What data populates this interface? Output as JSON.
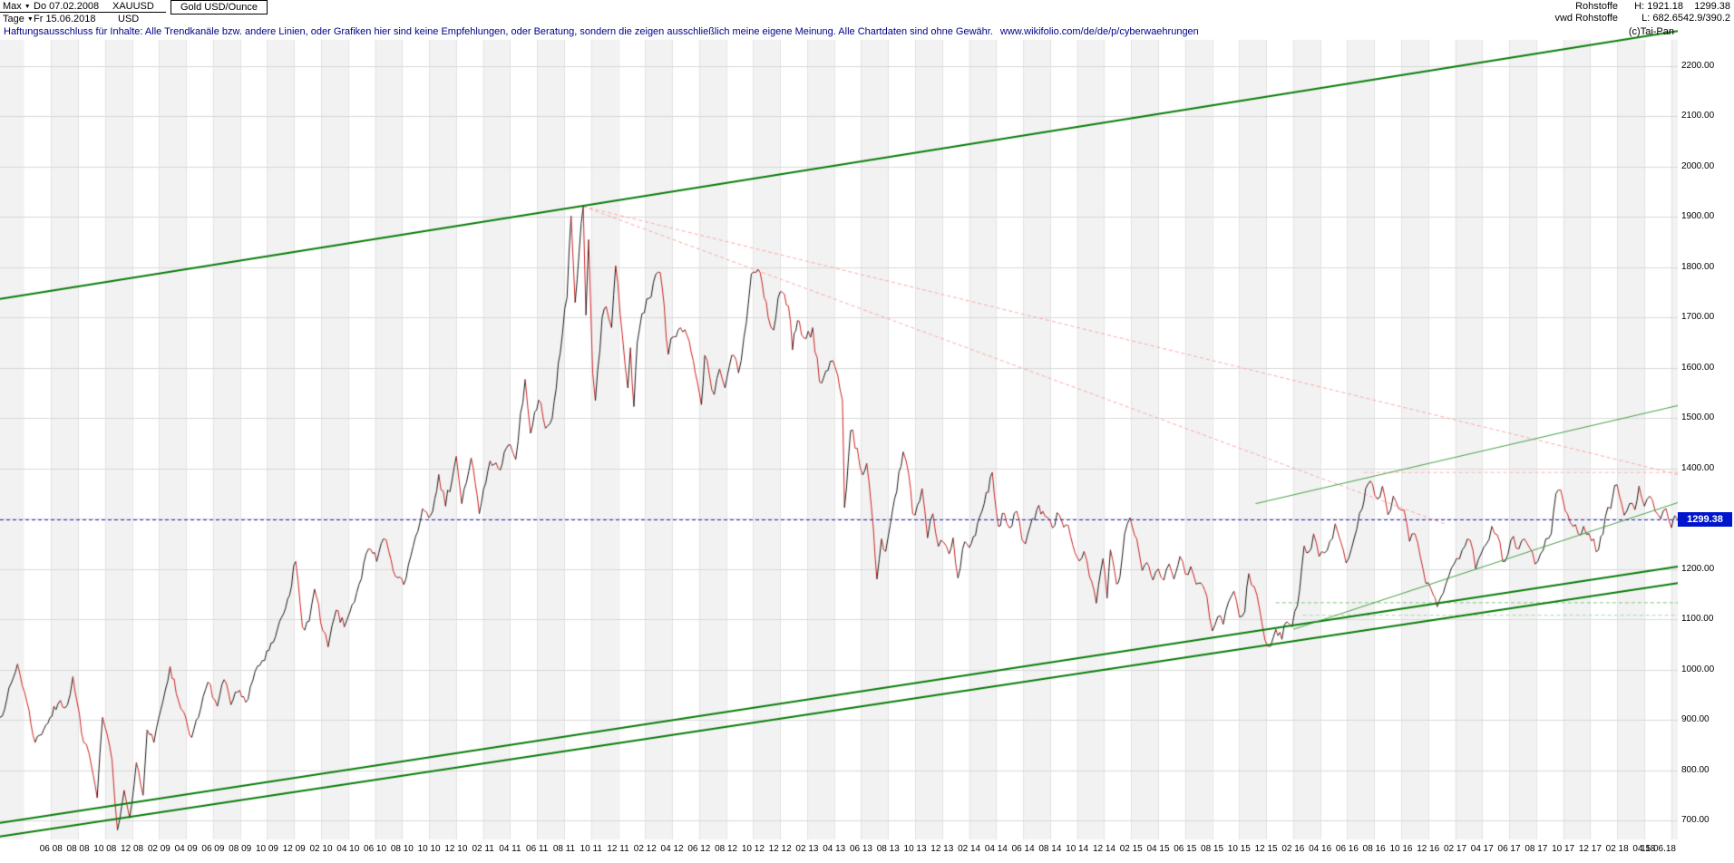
{
  "header": {
    "range": "Max",
    "dropdown_arrow": "▼",
    "start_date": "Do 07.02.2008",
    "symbol": "XAUUSD",
    "instrument": "Gold USD/Ounce",
    "period": "Tage",
    "end_date": "Fr 15.06.2018",
    "currency": "USD",
    "category": "Rohstoffe",
    "high_label": "H: 1921.18",
    "last_value": "1299.38",
    "source": "vwd Rohstoffe",
    "low_label": "L: 682.65",
    "change_value": "42.9/390.2",
    "copyright": "(c)Tai-Pan"
  },
  "disclaimer": {
    "text": "Haftungsausschluss für Inhalte: Alle Trendkanäle bzw. andere Linien, oder Grafiken hier sind keine Empfehlungen, oder Beratung, sondern die zeigen ausschließlich meine eigene Meinung. Alle Chartdaten sind ohne Gewähr.",
    "url": "www.wikifolio.com/de/de/p/cyberwaehrungen"
  },
  "price_axis": {
    "labels": [
      "2200.00",
      "2100.00",
      "2000.00",
      "1900.00",
      "1800.00",
      "1700.00",
      "1600.00",
      "1500.00",
      "1400.00",
      "1300.00",
      "1200.00",
      "1100.00",
      "1000.00",
      "900.00",
      "800.00",
      "700.00"
    ],
    "last_price_tag": "1299.38"
  },
  "time_axis": {
    "start_month_offset": 3.78,
    "label_step_months": 2,
    "labels": [
      "06 08",
      "08 08",
      "10 08",
      "12 08",
      "02 09",
      "04 09",
      "06 09",
      "08 09",
      "10 09",
      "12 09",
      "02 10",
      "04 10",
      "06 10",
      "08 10",
      "10 10",
      "12 10",
      "02 11",
      "04 11",
      "06 11",
      "08 11",
      "10 11",
      "12 11",
      "02 12",
      "04 12",
      "06 12",
      "08 12",
      "10 12",
      "12 12",
      "02 13",
      "04 13",
      "06 13",
      "08 13",
      "10 13",
      "12 13",
      "02 14",
      "04 14",
      "06 14",
      "08 14",
      "10 14",
      "12 14",
      "02 15",
      "04 15",
      "06 15",
      "08 15",
      "10 15",
      "12 15",
      "02 16",
      "04 16",
      "06 16",
      "08 16",
      "10 16",
      "12 16",
      "02 17",
      "04 17",
      "06 17",
      "08 17",
      "10 17",
      "12 17",
      "02 18",
      "04 18"
    ],
    "end_label": "15.06.18"
  },
  "chart_data": {
    "type": "line",
    "title": "Gold USD/Ounce (XAUUSD), Tage, 07.02.2008 - 15.06.2018",
    "x_unit": "months since 07.02.2008",
    "x_range": [
      0,
      124.27
    ],
    "ylim": [
      700,
      2200
    ],
    "y_gridline_step": 100,
    "high": 1921.18,
    "low": 682.65,
    "last": 1299.38,
    "price_path": [
      [
        0,
        905
      ],
      [
        0.5,
        940
      ],
      [
        1.3,
        1011
      ],
      [
        2,
        935
      ],
      [
        2.6,
        855
      ],
      [
        3.4,
        890
      ],
      [
        4.3,
        932
      ],
      [
        5,
        930
      ],
      [
        5.4,
        986
      ],
      [
        6.2,
        855
      ],
      [
        6.6,
        833
      ],
      [
        7.2,
        745
      ],
      [
        7.6,
        905
      ],
      [
        8.3,
        820
      ],
      [
        8.7,
        681
      ],
      [
        9.2,
        760
      ],
      [
        9.6,
        705
      ],
      [
        10.1,
        815
      ],
      [
        10.6,
        750
      ],
      [
        10.9,
        880
      ],
      [
        11.4,
        855
      ],
      [
        11.9,
        919
      ],
      [
        12.6,
        1006
      ],
      [
        13.2,
        940
      ],
      [
        13.6,
        916
      ],
      [
        14.2,
        865
      ],
      [
        14.7,
        905
      ],
      [
        15.4,
        975
      ],
      [
        16.1,
        927
      ],
      [
        16.6,
        980
      ],
      [
        17.1,
        930
      ],
      [
        17.6,
        955
      ],
      [
        18.2,
        935
      ],
      [
        18.9,
        997
      ],
      [
        19.6,
        1018
      ],
      [
        20.4,
        1065
      ],
      [
        21.3,
        1140
      ],
      [
        21.9,
        1215
      ],
      [
        22.4,
        1085
      ],
      [
        22.9,
        1096
      ],
      [
        23.3,
        1160
      ],
      [
        23.9,
        1078
      ],
      [
        24.3,
        1045
      ],
      [
        24.9,
        1118
      ],
      [
        25.5,
        1085
      ],
      [
        25.9,
        1113
      ],
      [
        26.6,
        1170
      ],
      [
        27.3,
        1240
      ],
      [
        27.9,
        1215
      ],
      [
        28.4,
        1260
      ],
      [
        28.8,
        1235
      ],
      [
        29.3,
        1185
      ],
      [
        29.9,
        1169
      ],
      [
        30.6,
        1245
      ],
      [
        31.3,
        1320
      ],
      [
        31.9,
        1307
      ],
      [
        32.5,
        1388
      ],
      [
        33,
        1325
      ],
      [
        33.8,
        1424
      ],
      [
        34.2,
        1330
      ],
      [
        34.9,
        1421
      ],
      [
        35.5,
        1310
      ],
      [
        36.3,
        1415
      ],
      [
        36.9,
        1400
      ],
      [
        37.8,
        1447
      ],
      [
        38.2,
        1418
      ],
      [
        38.9,
        1577
      ],
      [
        39.3,
        1470
      ],
      [
        39.9,
        1536
      ],
      [
        40.4,
        1480
      ],
      [
        40.9,
        1500
      ],
      [
        41.5,
        1630
      ],
      [
        42,
        1740
      ],
      [
        42.3,
        1902
      ],
      [
        42.6,
        1730
      ],
      [
        43.2,
        1921
      ],
      [
        43.4,
        1705
      ],
      [
        43.6,
        1855
      ],
      [
        43.9,
        1590
      ],
      [
        44.1,
        1535
      ],
      [
        44.6,
        1700
      ],
      [
        44.9,
        1722
      ],
      [
        45.3,
        1680
      ],
      [
        45.6,
        1803
      ],
      [
        46.1,
        1665
      ],
      [
        46.5,
        1560
      ],
      [
        46.7,
        1640
      ],
      [
        46.95,
        1523
      ],
      [
        47.2,
        1650
      ],
      [
        47.9,
        1737
      ],
      [
        48.9,
        1790
      ],
      [
        49.5,
        1627
      ],
      [
        49.9,
        1662
      ],
      [
        50.4,
        1680
      ],
      [
        50.9,
        1664
      ],
      [
        51.5,
        1590
      ],
      [
        51.95,
        1527
      ],
      [
        52.2,
        1625
      ],
      [
        52.9,
        1547
      ],
      [
        53.3,
        1598
      ],
      [
        53.7,
        1560
      ],
      [
        54.2,
        1625
      ],
      [
        54.7,
        1590
      ],
      [
        55.1,
        1660
      ],
      [
        55.65,
        1787
      ],
      [
        56.15,
        1796
      ],
      [
        56.9,
        1700
      ],
      [
        57.3,
        1675
      ],
      [
        57.8,
        1752
      ],
      [
        58.4,
        1723
      ],
      [
        58.7,
        1636
      ],
      [
        58.95,
        1674
      ],
      [
        59.2,
        1693
      ],
      [
        59.7,
        1658
      ],
      [
        60.2,
        1680
      ],
      [
        60.7,
        1572
      ],
      [
        61,
        1580
      ],
      [
        61.5,
        1613
      ],
      [
        61.9,
        1598
      ],
      [
        62.2,
        1560
      ],
      [
        62.4,
        1535
      ],
      [
        62.5,
        1400
      ],
      [
        62.55,
        1322
      ],
      [
        63,
        1475
      ],
      [
        63.5,
        1440
      ],
      [
        63.9,
        1387
      ],
      [
        64.2,
        1410
      ],
      [
        64.7,
        1277
      ],
      [
        64.95,
        1180
      ],
      [
        65.3,
        1260
      ],
      [
        65.6,
        1235
      ],
      [
        66.1,
        1315
      ],
      [
        66.9,
        1433
      ],
      [
        67.3,
        1390
      ],
      [
        67.6,
        1310
      ],
      [
        67.95,
        1327
      ],
      [
        68.3,
        1360
      ],
      [
        68.7,
        1262
      ],
      [
        69.1,
        1310
      ],
      [
        69.5,
        1245
      ],
      [
        69.9,
        1253
      ],
      [
        70.3,
        1230
      ],
      [
        70.6,
        1262
      ],
      [
        70.95,
        1182
      ],
      [
        71.3,
        1240
      ],
      [
        71.95,
        1251
      ],
      [
        72.4,
        1290
      ],
      [
        72.9,
        1330
      ],
      [
        73.5,
        1392
      ],
      [
        73.95,
        1285
      ],
      [
        74.4,
        1310
      ],
      [
        74.95,
        1285
      ],
      [
        75.3,
        1315
      ],
      [
        75.7,
        1258
      ],
      [
        75.95,
        1250
      ],
      [
        76.3,
        1285
      ],
      [
        76.95,
        1327
      ],
      [
        77.4,
        1305
      ],
      [
        77.95,
        1282
      ],
      [
        78.3,
        1312
      ],
      [
        78.95,
        1288
      ],
      [
        79.3,
        1265
      ],
      [
        79.95,
        1216
      ],
      [
        80.3,
        1235
      ],
      [
        80.7,
        1185
      ],
      [
        81.2,
        1132
      ],
      [
        81.7,
        1221
      ],
      [
        82,
        1142
      ],
      [
        82.25,
        1238
      ],
      [
        82.7,
        1170
      ],
      [
        82.95,
        1184
      ],
      [
        83.3,
        1270
      ],
      [
        83.7,
        1302
      ],
      [
        84.2,
        1260
      ],
      [
        84.6,
        1197
      ],
      [
        84.95,
        1213
      ],
      [
        85.4,
        1178
      ],
      [
        85.8,
        1200
      ],
      [
        86.2,
        1178
      ],
      [
        86.6,
        1210
      ],
      [
        86.95,
        1180
      ],
      [
        87.4,
        1225
      ],
      [
        87.8,
        1190
      ],
      [
        88.2,
        1205
      ],
      [
        88.6,
        1170
      ],
      [
        88.95,
        1172
      ],
      [
        89.4,
        1145
      ],
      [
        89.8,
        1077
      ],
      [
        90.2,
        1105
      ],
      [
        90.6,
        1090
      ],
      [
        91,
        1135
      ],
      [
        91.4,
        1156
      ],
      [
        91.8,
        1105
      ],
      [
        92.2,
        1115
      ],
      [
        92.5,
        1191
      ],
      [
        92.9,
        1165
      ],
      [
        93.3,
        1120
      ],
      [
        93.7,
        1058
      ],
      [
        94.1,
        1046
      ],
      [
        94.5,
        1080
      ],
      [
        94.95,
        1060
      ],
      [
        95.3,
        1095
      ],
      [
        95.7,
        1085
      ],
      [
        96.1,
        1127
      ],
      [
        96.6,
        1246
      ],
      [
        96.95,
        1234
      ],
      [
        97.3,
        1270
      ],
      [
        97.7,
        1225
      ],
      [
        98.1,
        1232
      ],
      [
        98.5,
        1255
      ],
      [
        98.9,
        1290
      ],
      [
        99.3,
        1255
      ],
      [
        99.7,
        1212
      ],
      [
        100.1,
        1240
      ],
      [
        100.5,
        1280
      ],
      [
        100.9,
        1320
      ],
      [
        101.15,
        1360
      ],
      [
        101.5,
        1375
      ],
      [
        102,
        1340
      ],
      [
        102.4,
        1365
      ],
      [
        102.8,
        1308
      ],
      [
        103.2,
        1345
      ],
      [
        103.6,
        1320
      ],
      [
        104,
        1317
      ],
      [
        104.4,
        1255
      ],
      [
        104.8,
        1270
      ],
      [
        105.2,
        1225
      ],
      [
        105.6,
        1172
      ],
      [
        106,
        1160
      ],
      [
        106.45,
        1125
      ],
      [
        106.9,
        1152
      ],
      [
        107.3,
        1185
      ],
      [
        107.7,
        1210
      ],
      [
        108.1,
        1220
      ],
      [
        108.5,
        1245
      ],
      [
        108.9,
        1257
      ],
      [
        109.3,
        1200
      ],
      [
        109.7,
        1230
      ],
      [
        110.1,
        1250
      ],
      [
        110.5,
        1285
      ],
      [
        110.9,
        1268
      ],
      [
        111.3,
        1215
      ],
      [
        111.7,
        1230
      ],
      [
        112.1,
        1265
      ],
      [
        112.5,
        1240
      ],
      [
        112.9,
        1260
      ],
      [
        113.3,
        1242
      ],
      [
        113.7,
        1210
      ],
      [
        114.1,
        1230
      ],
      [
        114.5,
        1260
      ],
      [
        114.9,
        1270
      ],
      [
        115.25,
        1350
      ],
      [
        115.6,
        1357
      ],
      [
        116.1,
        1310
      ],
      [
        116.5,
        1285
      ],
      [
        116.9,
        1270
      ],
      [
        117.3,
        1285
      ],
      [
        117.7,
        1270
      ],
      [
        118.4,
        1238
      ],
      [
        118.9,
        1303
      ],
      [
        119.3,
        1320
      ],
      [
        119.6,
        1366
      ],
      [
        119.95,
        1345
      ],
      [
        120.3,
        1307
      ],
      [
        120.7,
        1330
      ],
      [
        121.1,
        1318
      ],
      [
        121.4,
        1365
      ],
      [
        121.8,
        1325
      ],
      [
        122.2,
        1345
      ],
      [
        122.6,
        1315
      ],
      [
        123,
        1300
      ],
      [
        123.4,
        1320
      ],
      [
        123.8,
        1282
      ],
      [
        124.05,
        1306
      ],
      [
        124.25,
        1299.38
      ]
    ],
    "annotations": [
      {
        "id": "channel-upper",
        "type": "line",
        "layer": "over",
        "style": "solid",
        "color": "#067b06",
        "width": 2,
        "from": [
          0,
          1737
        ],
        "to": [
          124.27,
          2270
        ]
      },
      {
        "id": "channel-lower-inner",
        "type": "line",
        "layer": "over",
        "style": "solid",
        "color": "#067b06",
        "width": 2,
        "from": [
          0,
          695
        ],
        "to": [
          124.27,
          1205
        ]
      },
      {
        "id": "channel-lower-outer",
        "type": "line",
        "layer": "over",
        "style": "solid",
        "color": "#067b06",
        "width": 2,
        "from": [
          0,
          668
        ],
        "to": [
          124.27,
          1172
        ]
      },
      {
        "id": "minor-rising-upper",
        "type": "line",
        "layer": "over",
        "style": "solid",
        "color": "#46a046",
        "width": 1,
        "from": [
          93,
          1330
        ],
        "to": [
          124.27,
          1525
        ]
      },
      {
        "id": "minor-rising-lower",
        "type": "line",
        "layer": "over",
        "style": "solid",
        "color": "#46a046",
        "width": 1,
        "from": [
          95.8,
          1080
        ],
        "to": [
          124.27,
          1332
        ]
      },
      {
        "id": "falling-from-peak-outer",
        "type": "line",
        "layer": "under",
        "style": "dashed",
        "color": "#ffa8a8",
        "width": 1,
        "from": [
          43.2,
          1921
        ],
        "to": [
          124.27,
          1388
        ]
      },
      {
        "id": "falling-from-peak-inner",
        "type": "line",
        "layer": "under",
        "style": "dashed",
        "color": "#ffa8a8",
        "width": 1,
        "from": [
          43.2,
          1921
        ],
        "to": [
          107,
          1290
        ]
      },
      {
        "id": "resistance-1390",
        "type": "line",
        "layer": "under",
        "style": "dashed",
        "color": "#ffb4b4",
        "width": 1,
        "from": [
          101,
          1392
        ],
        "to": [
          124.27,
          1392
        ]
      },
      {
        "id": "support-1133",
        "type": "line",
        "layer": "under",
        "style": "dashed",
        "color": "#7cc87c",
        "width": 1,
        "from": [
          94.5,
          1133
        ],
        "to": [
          124.27,
          1133
        ]
      },
      {
        "id": "support-1108",
        "type": "line",
        "layer": "under",
        "style": "dashed",
        "color": "#a8d8a8",
        "width": 1,
        "from": [
          96.5,
          1108
        ],
        "to": [
          124.27,
          1108
        ]
      },
      {
        "id": "last-price-line",
        "type": "hline",
        "layer": "over",
        "style": "dashed",
        "color": "#2828c8",
        "width": 1,
        "price": 1299.38
      }
    ]
  },
  "colors": {
    "candle_up": "#1a1a1a",
    "candle_down": "#cc2222",
    "band": "#f2f2f2",
    "grid": "#d9d9d9",
    "grid_vertical": "#e4e4e4",
    "tag_bg": "#0016cc",
    "tag_text": "#ffffff"
  }
}
